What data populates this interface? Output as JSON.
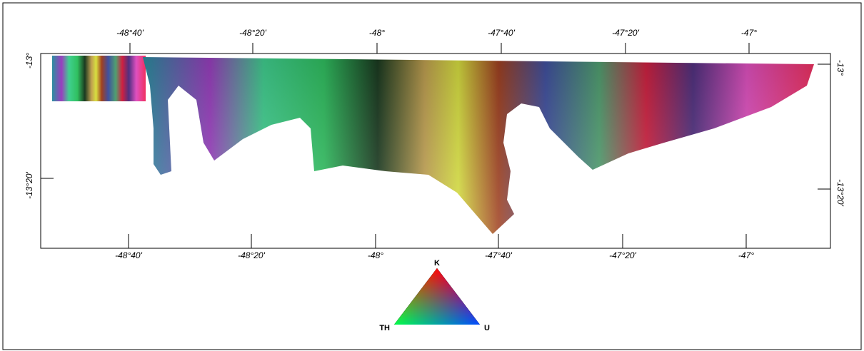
{
  "map": {
    "top_ticks": [
      "-48°40'",
      "-48°20'",
      "-48°",
      "-47°40'",
      "-47°20'",
      "-47°"
    ],
    "bottom_ticks": [
      "-48°40'",
      "-48°20'",
      "-48°",
      "-47°40'",
      "-47°20'",
      "-47°"
    ],
    "left_ticks": [
      "-13°",
      "-13°20'"
    ],
    "right_ticks": [
      "-13°",
      "-13°20'"
    ]
  },
  "legend": {
    "top": "K",
    "left": "TH",
    "right": "U"
  }
}
